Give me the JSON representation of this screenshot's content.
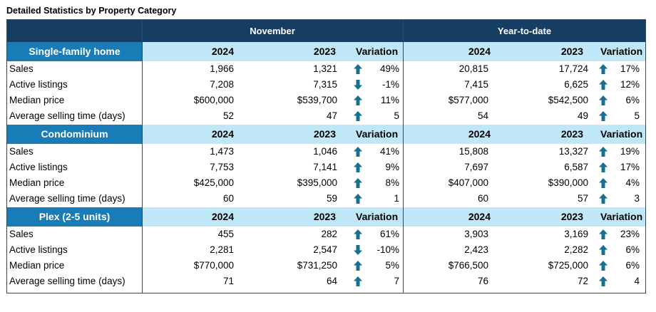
{
  "title": "Detailed Statistics by Property Category",
  "header": {
    "november": "November",
    "ytd": "Year-to-date"
  },
  "colors": {
    "header": "#163e63",
    "section_label": "#1a7cb7",
    "section_band": "#bfe7f7",
    "arrow": "#17708f"
  },
  "sections": [
    {
      "name": "Single-family home",
      "col_2024": "2024",
      "col_2023": "2023",
      "col_var": "Variation",
      "rows": [
        {
          "label": "Sales",
          "nov24": "1,966",
          "nov23": "1,321",
          "nov_dir": "up",
          "nov_var": "49%",
          "ytd24": "20,815",
          "ytd23": "17,724",
          "ytd_dir": "up",
          "ytd_var": "17%"
        },
        {
          "label": "Active listings",
          "nov24": "7,208",
          "nov23": "7,315",
          "nov_dir": "down",
          "nov_var": "-1%",
          "ytd24": "7,415",
          "ytd23": "6,625",
          "ytd_dir": "up",
          "ytd_var": "12%"
        },
        {
          "label": "Median price",
          "nov24": "$600,000",
          "nov23": "$539,700",
          "nov_dir": "up",
          "nov_var": "11%",
          "ytd24": "$577,000",
          "ytd23": "$542,500",
          "ytd_dir": "up",
          "ytd_var": "6%"
        },
        {
          "label": "Average selling time (days)",
          "nov24": "52",
          "nov23": "47",
          "nov_dir": "up",
          "nov_var": "5",
          "ytd24": "54",
          "ytd23": "49",
          "ytd_dir": "up",
          "ytd_var": "5"
        }
      ]
    },
    {
      "name": "Condominium",
      "col_2024": "2024",
      "col_2023": "2023",
      "col_var": "Variation",
      "rows": [
        {
          "label": "Sales",
          "nov24": "1,473",
          "nov23": "1,046",
          "nov_dir": "up",
          "nov_var": "41%",
          "ytd24": "15,808",
          "ytd23": "13,327",
          "ytd_dir": "up",
          "ytd_var": "19%"
        },
        {
          "label": "Active listings",
          "nov24": "7,753",
          "nov23": "7,141",
          "nov_dir": "up",
          "nov_var": "9%",
          "ytd24": "7,697",
          "ytd23": "6,587",
          "ytd_dir": "up",
          "ytd_var": "17%"
        },
        {
          "label": "Median price",
          "nov24": "$425,000",
          "nov23": "$395,000",
          "nov_dir": "up",
          "nov_var": "8%",
          "ytd24": "$407,000",
          "ytd23": "$390,000",
          "ytd_dir": "up",
          "ytd_var": "4%"
        },
        {
          "label": "Average selling time (days)",
          "nov24": "60",
          "nov23": "59",
          "nov_dir": "up",
          "nov_var": "1",
          "ytd24": "60",
          "ytd23": "57",
          "ytd_dir": "up",
          "ytd_var": "3"
        }
      ]
    },
    {
      "name": "Plex (2-5 units)",
      "col_2024": "2024",
      "col_2023": "2023",
      "col_var": "Variation",
      "rows": [
        {
          "label": "Sales",
          "nov24": "455",
          "nov23": "282",
          "nov_dir": "up",
          "nov_var": "61%",
          "ytd24": "3,903",
          "ytd23": "3,169",
          "ytd_dir": "up",
          "ytd_var": "23%"
        },
        {
          "label": "Active listings",
          "nov24": "2,281",
          "nov23": "2,547",
          "nov_dir": "down",
          "nov_var": "-10%",
          "ytd24": "2,423",
          "ytd23": "2,282",
          "ytd_dir": "up",
          "ytd_var": "6%"
        },
        {
          "label": "Median price",
          "nov24": "$770,000",
          "nov23": "$731,250",
          "nov_dir": "up",
          "nov_var": "5%",
          "ytd24": "$766,500",
          "ytd23": "$725,000",
          "ytd_dir": "up",
          "ytd_var": "6%"
        },
        {
          "label": "Average selling time (days)",
          "nov24": "71",
          "nov23": "64",
          "nov_dir": "up",
          "nov_var": "7",
          "ytd24": "76",
          "ytd23": "72",
          "ytd_dir": "up",
          "ytd_var": "4"
        }
      ]
    }
  ]
}
